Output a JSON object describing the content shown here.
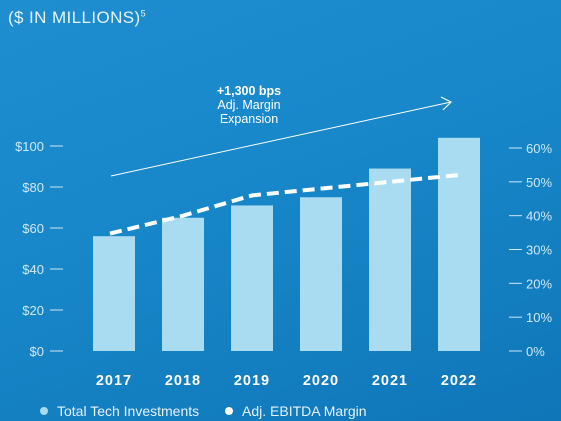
{
  "subtitle": "($ IN MILLIONS)",
  "subtitle_footnote": "5",
  "annotation": {
    "value": "+1,300 bps",
    "line1": "Adj. Margin",
    "line2": "Expansion"
  },
  "colors": {
    "bar": "#a9dcf1",
    "line": "#ffffff",
    "background": "#1787c9"
  },
  "chart_data": {
    "type": "bar",
    "categories": [
      "2017",
      "2018",
      "2019",
      "2020",
      "2021",
      "2022"
    ],
    "series": [
      {
        "name": "Total Tech Investments",
        "type": "bar",
        "axis": "left",
        "values": [
          56,
          65,
          71,
          75,
          89,
          104
        ]
      },
      {
        "name": "Adj. EBITDA Margin",
        "type": "line",
        "axis": "right",
        "style": "dashed",
        "values": [
          35,
          40,
          46,
          48,
          50,
          52
        ]
      }
    ],
    "y_left": {
      "ticks": [
        "$0",
        "$20",
        "$40",
        "$60",
        "$80",
        "$100"
      ],
      "range": [
        0,
        100
      ]
    },
    "y_right": {
      "ticks": [
        "0%",
        "10%",
        "20%",
        "30%",
        "40%",
        "50%",
        "60%"
      ],
      "range": [
        0,
        60
      ]
    },
    "grid": false,
    "legend_position": "bottom-left"
  },
  "legend": [
    {
      "label": "Total Tech Investments",
      "color": "#a9dcf1"
    },
    {
      "label": "Adj. EBITDA Margin",
      "color": "#ffffff"
    }
  ]
}
